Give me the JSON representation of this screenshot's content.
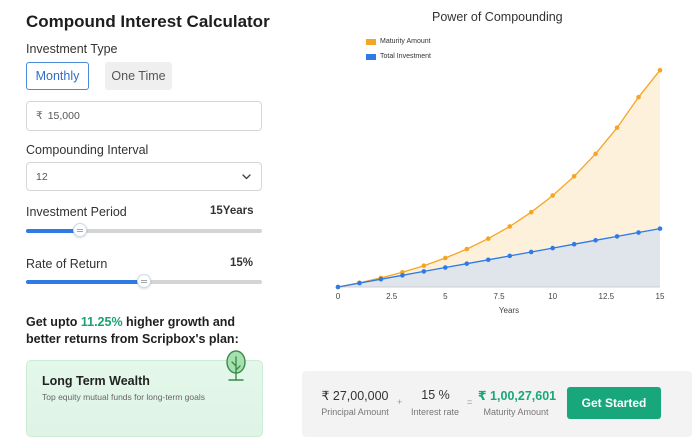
{
  "title": "Compound Interest Calculator",
  "investment_type": {
    "label": "Investment Type",
    "options": [
      "Monthly",
      "One Time"
    ],
    "selected": "Monthly"
  },
  "amount": {
    "currency": "₹",
    "value": "15,000"
  },
  "compounding": {
    "label": "Compounding Interval",
    "value": "12"
  },
  "period": {
    "label": "Investment Period",
    "value": "15Years",
    "fraction": 0.23
  },
  "rate": {
    "label": "Rate of Return",
    "value": "15%",
    "fraction": 0.5
  },
  "promo": {
    "prefix": "Get upto ",
    "highlight": "11.25%",
    "suffix": " higher growth and better returns from Scripbox's plan:"
  },
  "card": {
    "title": "Long Term Wealth",
    "subtitle": "Top equity mutual funds for long-term goals",
    "icon": "tree-icon"
  },
  "summary": {
    "principal_value": "₹ 27,00,000",
    "principal_label": "Principal Amount",
    "plus": "+",
    "interest_value": "15 %",
    "interest_label": "Interest rate",
    "equals": "=",
    "maturity_value": "₹ 1,00,27,601",
    "maturity_label": "Maturity Amount",
    "button_label": "Get Started"
  },
  "colors": {
    "accent": "#2f7ae5",
    "green": "#17a77a",
    "maturity": "#f5a524",
    "investment": "#2f7ae5"
  },
  "chart_data": {
    "type": "area",
    "title": "Power of Compounding",
    "xlabel": "Years",
    "ylabel": "",
    "xlim": [
      0,
      15
    ],
    "ylim": [
      0,
      10500000
    ],
    "x_ticks": [
      0,
      2.5,
      5,
      7.5,
      10,
      12.5,
      15
    ],
    "x_tick_labels": [
      "0",
      "2.5",
      "5",
      "7.5",
      "10",
      "12.5",
      "15"
    ],
    "legend_position": "top-left",
    "x": [
      0,
      1,
      2,
      3,
      4,
      5,
      6,
      7,
      8,
      9,
      10,
      11,
      12,
      13,
      14,
      15
    ],
    "series": [
      {
        "name": "Maturity Amount",
        "color": "#f5a524",
        "values": [
          0,
          195000,
          420000,
          680000,
          985000,
          1340000,
          1755000,
          2240000,
          2800000,
          3460000,
          4230000,
          5120000,
          6160000,
          7370000,
          8780000,
          10027601
        ]
      },
      {
        "name": "Total Investment",
        "color": "#2f7ae5",
        "values": [
          0,
          180000,
          360000,
          540000,
          720000,
          900000,
          1080000,
          1260000,
          1440000,
          1620000,
          1800000,
          1980000,
          2160000,
          2340000,
          2520000,
          2700000
        ]
      }
    ]
  }
}
